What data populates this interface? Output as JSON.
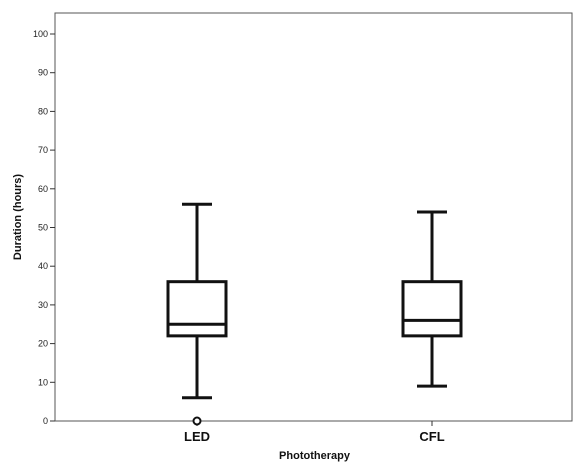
{
  "chart_data": {
    "type": "boxplot",
    "xlabel": "Phototherapy",
    "ylabel": "Duration (hours)",
    "categories": [
      "LED",
      "CFL"
    ],
    "ylim": [
      0,
      100
    ],
    "yticks": [
      0,
      10,
      20,
      30,
      40,
      50,
      60,
      70,
      80,
      90,
      100
    ],
    "grid": false,
    "boxes": [
      {
        "category": "LED",
        "min": 6,
        "q1": 22,
        "median": 25,
        "q3": 36,
        "max": 56,
        "outliers": [
          0
        ]
      },
      {
        "category": "CFL",
        "min": 9,
        "q1": 22,
        "median": 26,
        "q3": 36,
        "max": 54,
        "outliers": []
      }
    ]
  }
}
